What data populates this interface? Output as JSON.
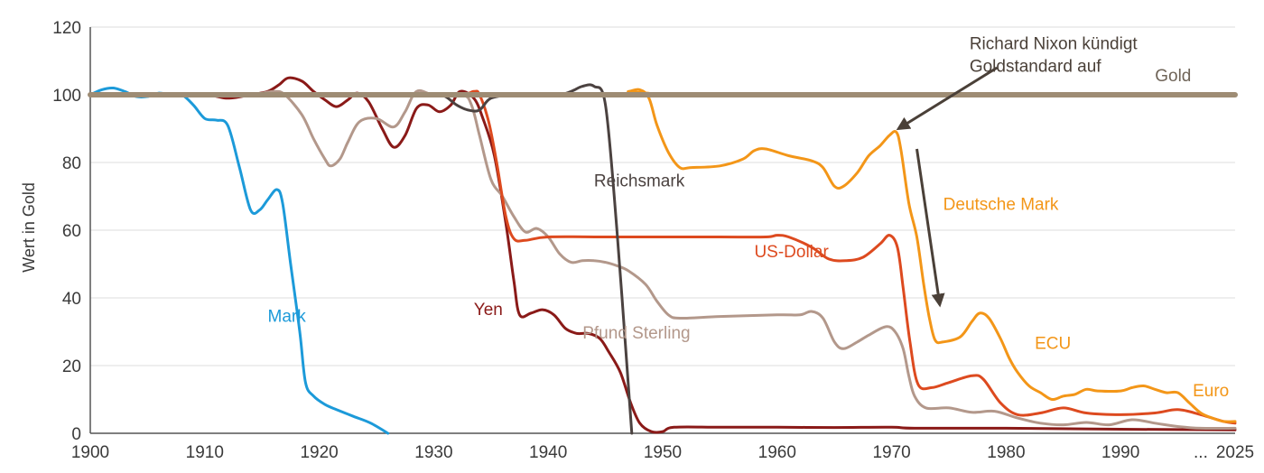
{
  "chart_data": {
    "type": "line",
    "ylabel": "Wert in Gold",
    "xlabel": "",
    "ylim": [
      0,
      120
    ],
    "xlim": [
      1900,
      2000
    ],
    "grid": "horizontal",
    "y_ticks": [
      0,
      20,
      40,
      60,
      80,
      100,
      120
    ],
    "x_ticks": [
      {
        "x": 1900,
        "label": "1900"
      },
      {
        "x": 1910,
        "label": "1910"
      },
      {
        "x": 1920,
        "label": "1920"
      },
      {
        "x": 1930,
        "label": "1930"
      },
      {
        "x": 1940,
        "label": "1940"
      },
      {
        "x": 1950,
        "label": "1950"
      },
      {
        "x": 1960,
        "label": "1960"
      },
      {
        "x": 1970,
        "label": "1970"
      },
      {
        "x": 1980,
        "label": "1980"
      },
      {
        "x": 1990,
        "label": "1990"
      },
      {
        "x": 1997,
        "label": "..."
      },
      {
        "x": 2000,
        "label": "2025"
      }
    ],
    "series": [
      {
        "name": "Gold",
        "color": "#9e8c74",
        "width": 6,
        "label_point": [
          1993,
          104
        ],
        "points": [
          [
            1900,
            100
          ],
          [
            2000,
            100
          ]
        ]
      },
      {
        "name": "Mark",
        "color": "#1c9ad9",
        "width": 3,
        "label_point": [
          1915.5,
          33
        ],
        "points": [
          [
            1900,
            100
          ],
          [
            1901,
            101.5
          ],
          [
            1902,
            102
          ],
          [
            1903,
            101
          ],
          [
            1904,
            99.5
          ],
          [
            1905,
            99.5
          ],
          [
            1906,
            100.5
          ],
          [
            1907,
            100
          ],
          [
            1908,
            100
          ],
          [
            1909,
            97
          ],
          [
            1910,
            93
          ],
          [
            1911,
            92.5
          ],
          [
            1912,
            91
          ],
          [
            1913,
            79
          ],
          [
            1914,
            66
          ],
          [
            1914.8,
            66
          ],
          [
            1915.5,
            69
          ],
          [
            1916.3,
            72
          ],
          [
            1916.8,
            68
          ],
          [
            1917.5,
            50
          ],
          [
            1918.3,
            30
          ],
          [
            1918.8,
            15
          ],
          [
            1919.5,
            11
          ],
          [
            1920.5,
            8.5
          ],
          [
            1921.5,
            7
          ],
          [
            1923,
            5
          ],
          [
            1924.5,
            3
          ],
          [
            1926,
            0
          ]
        ]
      },
      {
        "name": "Yen",
        "color": "#8a1a18",
        "width": 3,
        "label_point": [
          1933.5,
          35
        ],
        "points": [
          [
            1900,
            100
          ],
          [
            1905,
            100
          ],
          [
            1910,
            100
          ],
          [
            1912,
            99
          ],
          [
            1914,
            100
          ],
          [
            1915.5,
            101
          ],
          [
            1916.5,
            103
          ],
          [
            1917.3,
            105
          ],
          [
            1918.5,
            104
          ],
          [
            1919.5,
            101
          ],
          [
            1920.5,
            98.5
          ],
          [
            1921.5,
            96.5
          ],
          [
            1922.5,
            98.5
          ],
          [
            1923.3,
            100.5
          ],
          [
            1924.3,
            98
          ],
          [
            1925.5,
            90
          ],
          [
            1926.5,
            84.5
          ],
          [
            1927.5,
            88
          ],
          [
            1928.5,
            96
          ],
          [
            1929.5,
            97
          ],
          [
            1930.5,
            95
          ],
          [
            1931.5,
            97
          ],
          [
            1932.3,
            101
          ],
          [
            1933.5,
            99
          ],
          [
            1934.3,
            93
          ],
          [
            1935.3,
            82
          ],
          [
            1936.3,
            62
          ],
          [
            1937,
            45
          ],
          [
            1937.5,
            35
          ],
          [
            1938.5,
            35.5
          ],
          [
            1939.5,
            36.5
          ],
          [
            1940.5,
            35
          ],
          [
            1941.5,
            31
          ],
          [
            1942.5,
            29.5
          ],
          [
            1943.5,
            29.5
          ],
          [
            1944.5,
            28
          ],
          [
            1945.3,
            24
          ],
          [
            1946.3,
            18
          ],
          [
            1947.2,
            9
          ],
          [
            1948,
            3
          ],
          [
            1949,
            0.5
          ],
          [
            1950,
            0.5
          ],
          [
            1951,
            1.8
          ],
          [
            1955,
            1.8
          ],
          [
            1960,
            1.8
          ],
          [
            1965,
            1.7
          ],
          [
            1970,
            1.8
          ],
          [
            1972,
            1.5
          ],
          [
            1980,
            1.5
          ],
          [
            1990,
            1.2
          ],
          [
            2000,
            1.0
          ]
        ]
      },
      {
        "name": "Pfund Sterling",
        "color": "#b3988b",
        "width": 3,
        "label_point": [
          1943,
          28
        ],
        "points": [
          [
            1900,
            100
          ],
          [
            1910,
            100
          ],
          [
            1914,
            100
          ],
          [
            1916,
            101
          ],
          [
            1917,
            100
          ],
          [
            1918.5,
            94
          ],
          [
            1919.5,
            87
          ],
          [
            1920.5,
            81
          ],
          [
            1921,
            79
          ],
          [
            1921.8,
            81
          ],
          [
            1922.5,
            86
          ],
          [
            1923.5,
            92
          ],
          [
            1925,
            93
          ],
          [
            1926.5,
            90.5
          ],
          [
            1927.5,
            95
          ],
          [
            1928.5,
            101
          ],
          [
            1930,
            100
          ],
          [
            1932.5,
            100
          ],
          [
            1933.3,
            97
          ],
          [
            1934,
            88
          ],
          [
            1935,
            75
          ],
          [
            1936,
            70
          ],
          [
            1937,
            64
          ],
          [
            1938,
            59.5
          ],
          [
            1939,
            60.5
          ],
          [
            1940,
            58
          ],
          [
            1941,
            53
          ],
          [
            1942,
            50.5
          ],
          [
            1943,
            51
          ],
          [
            1944,
            51
          ],
          [
            1945,
            50.5
          ],
          [
            1946,
            49.5
          ],
          [
            1947,
            48
          ],
          [
            1948.5,
            44
          ],
          [
            1949.5,
            39
          ],
          [
            1950.5,
            35
          ],
          [
            1951.5,
            34
          ],
          [
            1955,
            34.5
          ],
          [
            1960,
            35
          ],
          [
            1962,
            35
          ],
          [
            1963,
            36
          ],
          [
            1964,
            34
          ],
          [
            1965,
            27
          ],
          [
            1965.8,
            25
          ],
          [
            1967,
            27
          ],
          [
            1968,
            29
          ],
          [
            1969.5,
            31.5
          ],
          [
            1970.3,
            30
          ],
          [
            1971,
            25
          ],
          [
            1971.5,
            17
          ],
          [
            1972,
            11
          ],
          [
            1973,
            7.5
          ],
          [
            1975,
            7.5
          ],
          [
            1977,
            6.2
          ],
          [
            1979,
            6.5
          ],
          [
            1981,
            4.5
          ],
          [
            1983,
            3
          ],
          [
            1985,
            2.5
          ],
          [
            1987,
            3.2
          ],
          [
            1989,
            2.5
          ],
          [
            1991,
            4
          ],
          [
            1993,
            3
          ],
          [
            1995,
            2
          ],
          [
            1997,
            1.5
          ],
          [
            2000,
            1.5
          ]
        ]
      },
      {
        "name": "US-Dollar",
        "color": "#dd4a1f",
        "width": 3,
        "label_point": [
          1958,
          52
        ],
        "points": [
          [
            1900,
            100
          ],
          [
            1925,
            100
          ],
          [
            1932,
            100
          ],
          [
            1933.5,
            101
          ],
          [
            1934,
            100
          ],
          [
            1934.8,
            92
          ],
          [
            1935.5,
            80
          ],
          [
            1936.3,
            64
          ],
          [
            1937,
            57.5
          ],
          [
            1938,
            57
          ],
          [
            1940,
            58
          ],
          [
            1945,
            58
          ],
          [
            1950,
            58
          ],
          [
            1955,
            58
          ],
          [
            1959,
            58
          ],
          [
            1960,
            58.5
          ],
          [
            1961,
            58
          ],
          [
            1963,
            55
          ],
          [
            1964.5,
            51.5
          ],
          [
            1966,
            51
          ],
          [
            1967.5,
            52
          ],
          [
            1969,
            56
          ],
          [
            1969.8,
            58.5
          ],
          [
            1970.5,
            55
          ],
          [
            1971,
            43
          ],
          [
            1971.6,
            27
          ],
          [
            1972.3,
            14.5
          ],
          [
            1973.5,
            13.5
          ],
          [
            1975,
            15
          ],
          [
            1977,
            17
          ],
          [
            1978,
            16
          ],
          [
            1979.5,
            9
          ],
          [
            1981,
            5.5
          ],
          [
            1983,
            6
          ],
          [
            1985,
            7.5
          ],
          [
            1987,
            6
          ],
          [
            1990,
            5.5
          ],
          [
            1993,
            6
          ],
          [
            1995,
            7
          ],
          [
            1997,
            5.5
          ],
          [
            1999,
            3.5
          ],
          [
            2000,
            3
          ]
        ]
      },
      {
        "name": "Reichsmark",
        "color": "#4b4240",
        "width": 3,
        "label_point": [
          1944,
          73
        ],
        "points": [
          [
            1900,
            100
          ],
          [
            1930,
            100
          ],
          [
            1931,
            99.5
          ],
          [
            1932,
            97
          ],
          [
            1933,
            95.5
          ],
          [
            1934,
            95.5
          ],
          [
            1935,
            99
          ],
          [
            1937,
            100
          ],
          [
            1939,
            100
          ],
          [
            1941,
            100
          ],
          [
            1942,
            101
          ],
          [
            1943,
            102.5
          ],
          [
            1944,
            102.5
          ],
          [
            1945,
            97
          ],
          [
            1946,
            60
          ],
          [
            1947,
            14
          ],
          [
            1947.3,
            0
          ]
        ]
      },
      {
        "name": "Deutsche Mark",
        "color": "#f39618",
        "width": 3,
        "label_point": [
          1974.5,
          66
        ],
        "points": [
          [
            1900,
            100
          ],
          [
            1945,
            100
          ],
          [
            1947,
            101
          ],
          [
            1948,
            101.5
          ],
          [
            1948.8,
            99
          ],
          [
            1949.5,
            91
          ],
          [
            1950.5,
            83
          ],
          [
            1951.5,
            78.5
          ],
          [
            1952.5,
            78.5
          ],
          [
            1955,
            79
          ],
          [
            1957,
            81
          ],
          [
            1958,
            83.5
          ],
          [
            1959,
            84
          ],
          [
            1961,
            82
          ],
          [
            1963,
            80.5
          ],
          [
            1964,
            78.5
          ],
          [
            1965,
            73
          ],
          [
            1965.8,
            73
          ],
          [
            1967,
            77
          ],
          [
            1968,
            82
          ],
          [
            1969,
            85
          ],
          [
            1969.8,
            88
          ],
          [
            1970.4,
            89
          ],
          [
            1970.8,
            84
          ],
          [
            1971.5,
            68
          ],
          [
            1972.2,
            58
          ],
          [
            1972.8,
            44
          ],
          [
            1973.3,
            34
          ],
          [
            1973.8,
            27.5
          ],
          [
            1974.5,
            27
          ],
          [
            1976,
            28.5
          ],
          [
            1977,
            33
          ],
          [
            1977.7,
            35.5
          ],
          [
            1978.5,
            34
          ],
          [
            1979.5,
            28
          ],
          [
            1980.3,
            22
          ],
          [
            1981,
            18
          ],
          [
            1982,
            14
          ],
          [
            1983,
            12
          ],
          [
            1984,
            10
          ],
          [
            1985,
            11
          ],
          [
            1986,
            11.5
          ],
          [
            1987,
            13
          ],
          [
            1988,
            12.5
          ],
          [
            1990,
            12.5
          ],
          [
            1991,
            13.5
          ],
          [
            1992,
            14
          ],
          [
            1993,
            13
          ],
          [
            1994,
            12
          ],
          [
            1995,
            12
          ],
          [
            1996,
            9
          ],
          [
            1997,
            6
          ],
          [
            1998,
            4.5
          ],
          [
            1999,
            3.5
          ],
          [
            2000,
            3.5
          ]
        ]
      }
    ],
    "extra_labels": [
      {
        "text": "ECU",
        "color": "#f39618",
        "label_point": [
          1982.5,
          25
        ]
      },
      {
        "text": "Euro",
        "color": "#f39618",
        "label_point": [
          1996.3,
          11
        ]
      }
    ],
    "annotations": [
      {
        "lines": [
          "Richard Nixon kündigt",
          "Goldstandard auf"
        ],
        "label_point": [
          1976.8,
          113.5
        ],
        "arrow_from": [
          1979.2,
          108
        ],
        "arrow_to": [
          1970.6,
          90
        ]
      },
      {
        "lines": [],
        "arrow_from": [
          1972.2,
          84
        ],
        "arrow_to": [
          1974.2,
          38
        ]
      }
    ]
  }
}
